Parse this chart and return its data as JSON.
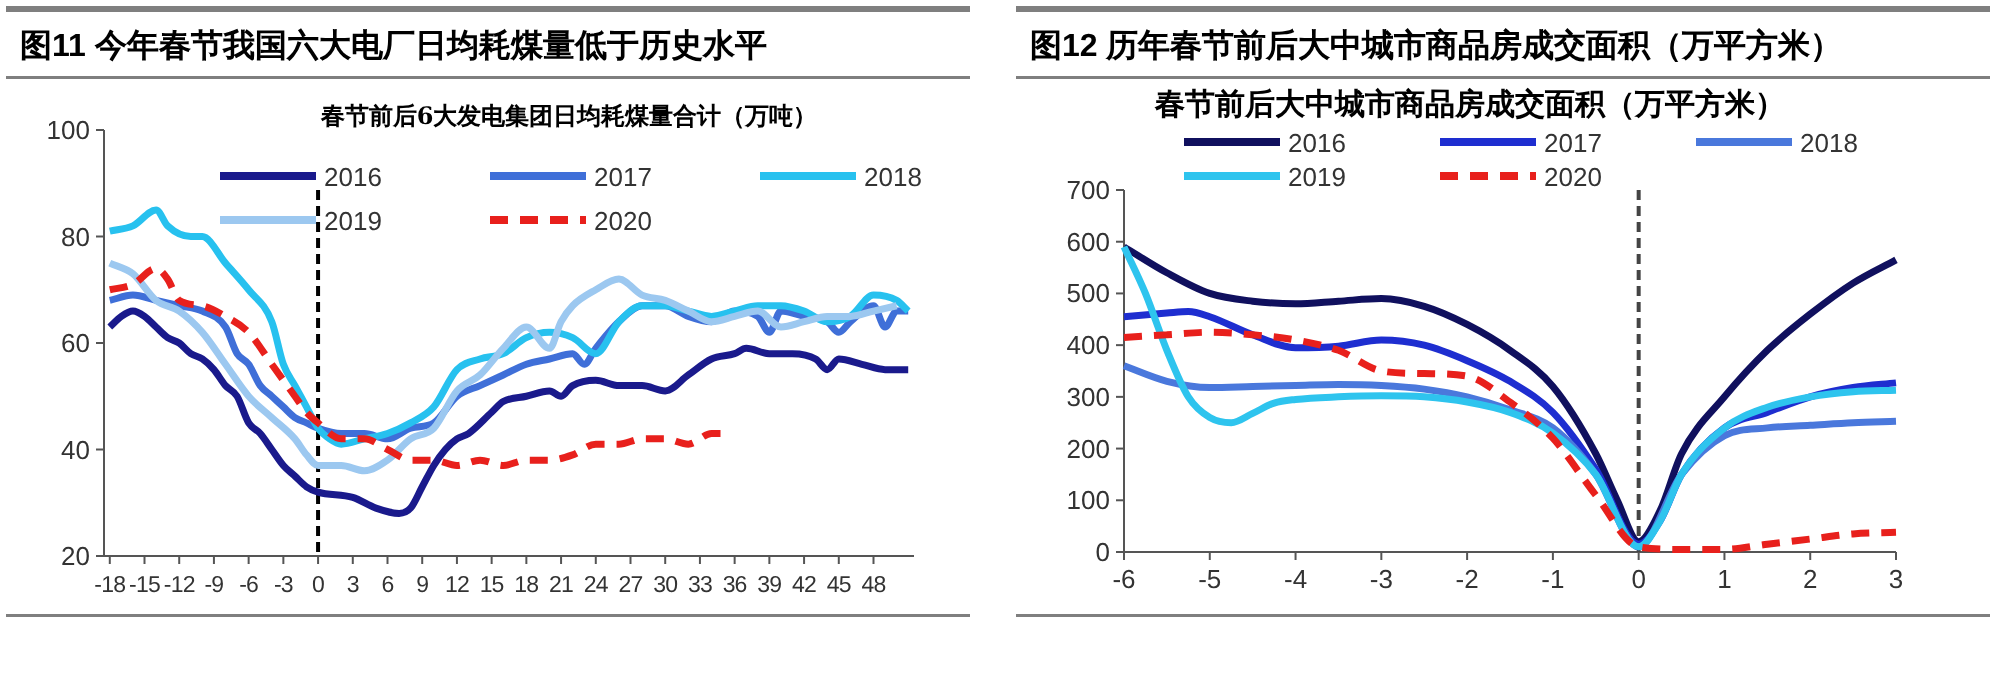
{
  "chart_data": [
    {
      "type": "line",
      "title": "图11 今年春节我国六大电厂日均耗煤量低于历史水平",
      "subtitle": "春节前后6大发电集团日均耗煤量合计（万吨）",
      "xlim": [
        -18.5,
        51.5
      ],
      "xticks": [
        -18,
        -15,
        -12,
        -9,
        -6,
        -3,
        0,
        3,
        6,
        9,
        12,
        15,
        18,
        21,
        24,
        27,
        30,
        33,
        36,
        39,
        42,
        45,
        48
      ],
      "ylim": [
        20,
        100
      ],
      "yticks": [
        20,
        40,
        60,
        80,
        100
      ],
      "grid": false,
      "legend": "top",
      "ref_lines": [
        {
          "axis": "x",
          "value": 0,
          "color": "#000000",
          "line_style": "dashed"
        }
      ],
      "series": [
        {
          "name": "2016",
          "color": "#1a1a8c",
          "x": [
            -18,
            -17,
            -16,
            -15,
            -14,
            -13,
            -12,
            -11,
            -10,
            -9,
            -8,
            -7,
            -6,
            -5,
            -4,
            -3,
            -2,
            -1,
            0,
            3,
            5,
            7,
            8,
            9,
            10,
            11,
            12,
            13,
            15,
            16,
            18,
            20,
            21,
            22,
            24,
            26,
            28,
            30,
            32,
            34,
            36,
            37,
            39,
            41,
            43,
            44,
            45,
            47,
            49,
            51
          ],
          "values": [
            63,
            65,
            66,
            65,
            63,
            61,
            60,
            58,
            57,
            55,
            52,
            50,
            45,
            43,
            40,
            37,
            35,
            33,
            32,
            31,
            29,
            28,
            29,
            33,
            37,
            40,
            42,
            43,
            47,
            49,
            50,
            51,
            50,
            52,
            53,
            52,
            52,
            51,
            54,
            57,
            58,
            59,
            58,
            58,
            57,
            55,
            57,
            56,
            55,
            55
          ]
        },
        {
          "name": "2017",
          "color": "#3f6fd8",
          "x": [
            -18,
            -16,
            -14,
            -12,
            -10,
            -8,
            -7,
            -6,
            -5,
            -4,
            -3,
            -2,
            -1,
            0,
            2,
            4,
            6,
            8,
            10,
            12,
            14,
            16,
            18,
            20,
            22,
            23,
            24,
            26,
            28,
            30,
            32,
            34,
            36,
            38,
            39,
            40,
            42,
            44,
            45,
            46,
            48,
            49,
            50,
            51
          ],
          "values": [
            68,
            69,
            68,
            67,
            66,
            63,
            58,
            56,
            52,
            50,
            48,
            46,
            45,
            44,
            43,
            43,
            42,
            44,
            45,
            50,
            52,
            54,
            56,
            57,
            58,
            56,
            59,
            64,
            67,
            67,
            65,
            64,
            66,
            65,
            62,
            66,
            65,
            64,
            62,
            64,
            67,
            63,
            66,
            66
          ]
        },
        {
          "name": "2018",
          "color": "#27c1ef",
          "x": [
            -18,
            -16,
            -14,
            -13,
            -11,
            -10,
            -8,
            -6,
            -4,
            -3,
            -2,
            -1,
            0,
            1,
            2,
            4,
            6,
            8,
            10,
            12,
            14,
            16,
            18,
            20,
            22,
            24,
            26,
            28,
            30,
            32,
            34,
            36,
            38,
            40,
            42,
            44,
            46,
            48,
            50,
            51
          ],
          "values": [
            81,
            82,
            85,
            82,
            80,
            80,
            75,
            70,
            64,
            56,
            52,
            48,
            44,
            42,
            41,
            42,
            43,
            45,
            48,
            55,
            57,
            58,
            61,
            62,
            61,
            58,
            64,
            67,
            67,
            66,
            65,
            66,
            67,
            67,
            66,
            64,
            65,
            69,
            68,
            66
          ]
        },
        {
          "name": "2019",
          "color": "#9cc8f0",
          "x": [
            -18,
            -16,
            -14,
            -12,
            -10,
            -8,
            -6,
            -4,
            -2,
            -1,
            0,
            2,
            4,
            6,
            8,
            10,
            12,
            14,
            16,
            18,
            20,
            21,
            22,
            24,
            26,
            28,
            30,
            32,
            34,
            36,
            38,
            40,
            42,
            44,
            46,
            48,
            50
          ],
          "values": [
            75,
            73,
            68,
            66,
            62,
            56,
            50,
            46,
            42,
            39,
            37,
            37,
            36,
            38,
            42,
            44,
            51,
            54,
            59,
            63,
            59,
            64,
            67,
            70,
            72,
            69,
            68,
            66,
            64,
            65,
            66,
            63,
            64,
            65,
            65,
            66,
            67
          ]
        },
        {
          "name": "2020",
          "color": "#e8201c",
          "line_style": "dashed",
          "x": [
            -18,
            -16,
            -14,
            -13,
            -12,
            -10,
            -8,
            -6,
            -4,
            -2,
            -1,
            0,
            2,
            4,
            6,
            8,
            10,
            12,
            14,
            16,
            18,
            20,
            22,
            24,
            26,
            28,
            30,
            32,
            34,
            35
          ],
          "values": [
            70,
            71,
            74,
            72,
            68,
            67,
            65,
            62,
            56,
            50,
            47,
            45,
            42,
            42,
            40,
            38,
            38,
            37,
            38,
            37,
            38,
            38,
            39,
            41,
            41,
            42,
            42,
            41,
            43,
            43
          ]
        }
      ]
    },
    {
      "type": "line",
      "title": "图12 历年春节前后大中城市商品房成交面积（万平方米）",
      "subtitle": "春节前后大中城市商品房成交面积（万平方米）",
      "xlim": [
        -6,
        3
      ],
      "xticks": [
        -6,
        -5,
        -4,
        -3,
        -2,
        -1,
        0,
        1,
        2,
        3
      ],
      "ylim": [
        0,
        700
      ],
      "yticks": [
        0,
        100,
        200,
        300,
        400,
        500,
        600,
        700
      ],
      "grid": false,
      "legend": "top",
      "ref_lines": [
        {
          "axis": "x",
          "value": 0,
          "color": "#444444",
          "line_style": "dashed"
        }
      ],
      "series": [
        {
          "name": "2016",
          "color": "#10105e",
          "x": [
            -6,
            -5.5,
            -5,
            -4.5,
            -4,
            -3.5,
            -3,
            -2.5,
            -2,
            -1.5,
            -1,
            -0.5,
            -0.25,
            0,
            0.25,
            0.5,
            1,
            1.5,
            2,
            2.5,
            3
          ],
          "values": [
            590,
            540,
            500,
            485,
            480,
            485,
            490,
            475,
            440,
            390,
            320,
            190,
            100,
            20,
            80,
            190,
            300,
            390,
            460,
            520,
            565
          ]
        },
        {
          "name": "2017",
          "color": "#1e2ed0",
          "x": [
            -6,
            -5.5,
            -5.25,
            -5,
            -4.5,
            -4,
            -3.5,
            -3,
            -2.5,
            -2,
            -1.5,
            -1,
            -0.5,
            0,
            0.25,
            0.5,
            1,
            1.5,
            2,
            2.5,
            3
          ],
          "values": [
            455,
            462,
            465,
            455,
            420,
            395,
            398,
            410,
            400,
            370,
            330,
            270,
            160,
            15,
            60,
            150,
            240,
            270,
            300,
            318,
            327
          ]
        },
        {
          "name": "2018",
          "color": "#4a78dc",
          "x": [
            -6,
            -5.5,
            -5,
            -4.5,
            -4,
            -3.5,
            -3,
            -2.5,
            -2,
            -1.5,
            -1,
            -0.5,
            0,
            0.5,
            1,
            1.5,
            2,
            2.5,
            3
          ],
          "values": [
            360,
            330,
            318,
            320,
            322,
            324,
            322,
            315,
            300,
            275,
            240,
            150,
            10,
            150,
            225,
            240,
            245,
            250,
            253
          ]
        },
        {
          "name": "2019",
          "color": "#2ec4ee",
          "x": [
            -6,
            -5.75,
            -5.5,
            -5.25,
            -5,
            -4.75,
            -4.5,
            -4.25,
            -4,
            -3.5,
            -3,
            -2.5,
            -2,
            -1.5,
            -1,
            -0.5,
            0,
            0.25,
            0.5,
            1,
            1.5,
            2,
            2.5,
            3
          ],
          "values": [
            590,
            500,
            390,
            300,
            260,
            250,
            268,
            288,
            295,
            300,
            302,
            300,
            290,
            270,
            230,
            150,
            10,
            60,
            150,
            240,
            280,
            300,
            310,
            313
          ]
        },
        {
          "name": "2020",
          "color": "#e8201c",
          "line_style": "dashed",
          "x": [
            -6,
            -5.5,
            -5,
            -4.5,
            -4,
            -3.5,
            -3,
            -2.5,
            -2,
            -1.5,
            -1,
            -0.5,
            0,
            0.5,
            1,
            1.5,
            2,
            2.5,
            3
          ],
          "values": [
            415,
            420,
            425,
            420,
            410,
            390,
            350,
            345,
            340,
            290,
            220,
            110,
            10,
            5,
            5,
            15,
            25,
            35,
            38
          ]
        }
      ]
    }
  ]
}
